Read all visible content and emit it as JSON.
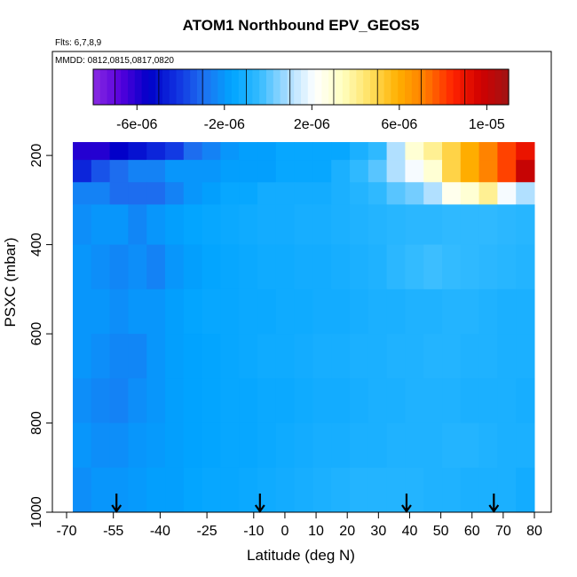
{
  "chart_data": {
    "type": "heatmap",
    "title": "ATOM1 Northbound EPV_GEOS5",
    "subtitle_flights": "Flts: 6,7,8,9",
    "subtitle_dates": "MMDD: 0812,0815,0817,0820",
    "xlabel": "Latitude (deg N)",
    "ylabel": "PSXC (mbar)",
    "xlim": [
      -70,
      80
    ],
    "ylim": [
      1000,
      150
    ],
    "y_reversed": true,
    "x_ticks": [
      "-70",
      "-55",
      "-40",
      "-25",
      "-10",
      "0",
      "10",
      "20",
      "30",
      "40",
      "50",
      "60",
      "70",
      "80"
    ],
    "x_tick_values": [
      -70,
      -55,
      -40,
      -25,
      -10,
      0,
      10,
      20,
      30,
      40,
      50,
      60,
      70,
      80
    ],
    "y_ticks": [
      "200",
      "400",
      "600",
      "800",
      "1000"
    ],
    "y_tick_values": [
      200,
      400,
      600,
      800,
      1000
    ],
    "colorbar": {
      "range": [
        -8e-06,
        1.1e-05
      ],
      "tick_labels": [
        "-6e-06",
        "-2e-06",
        "2e-06",
        "6e-06",
        "1e-05"
      ],
      "tick_values": [
        -6e-06,
        -2e-06,
        2e-06,
        6e-06,
        1e-05
      ],
      "colors": [
        "#8a2be2",
        "#5500dd",
        "#0000c8",
        "#1030e0",
        "#1e70f0",
        "#00a4ff",
        "#33bbff",
        "#a8dcff",
        "#ffffff",
        "#ffffc0",
        "#ffe060",
        "#ffb000",
        "#ff7a00",
        "#ff2200",
        "#d00000",
        "#a01414"
      ]
    },
    "profile_arrows_lat": [
      -54,
      -8,
      39,
      67
    ],
    "lat_range": [
      -68,
      80
    ],
    "rows": [
      {
        "p": [
          170,
          210
        ],
        "values": [
          -6e-06,
          -6e-06,
          -5.5e-06,
          -5e-06,
          -4.5e-06,
          -4e-06,
          -3e-06,
          -2.5e-06,
          -2e-06,
          -1.8e-06,
          -1.8e-06,
          -1.5e-06,
          -1.5e-06,
          -1.5e-06,
          -1.5e-06,
          -1e-06,
          -5e-07,
          1e-06,
          3e-06,
          4e-06,
          5e-06,
          6e-06,
          7e-06,
          8e-06,
          9e-06
        ]
      },
      {
        "p": [
          210,
          260
        ],
        "values": [
          -4.5e-06,
          -3.5e-06,
          -3e-06,
          -2.5e-06,
          -2.5e-06,
          -2e-06,
          -2e-06,
          -2e-06,
          -1.8e-06,
          -1.8e-06,
          -1.8e-06,
          -1.5e-06,
          -1.5e-06,
          -1.5e-06,
          -1e-06,
          -5e-07,
          0,
          1e-06,
          2e-06,
          3e-06,
          5e-06,
          6e-06,
          7e-06,
          8e-06,
          1e-05
        ]
      },
      {
        "p": [
          260,
          310
        ],
        "values": [
          -2.5e-06,
          -2.5e-06,
          -3e-06,
          -3e-06,
          -3e-06,
          -2.5e-06,
          -2e-06,
          -1.8e-06,
          -1.5e-06,
          -1.5e-06,
          -1.2e-06,
          -1.2e-06,
          -1.2e-06,
          -1.2e-06,
          -1e-06,
          -8e-07,
          -5e-07,
          0,
          3e-07,
          1e-06,
          2.5e-06,
          3e-06,
          4e-06,
          2e-06,
          1e-06
        ]
      },
      {
        "p": [
          310,
          400
        ],
        "values": [
          -2.2e-06,
          -2e-06,
          -2e-06,
          -2.4e-06,
          -2e-06,
          -1.8e-06,
          -1.6e-06,
          -1.5e-06,
          -1.4e-06,
          -1.3e-06,
          -1.2e-06,
          -1.2e-06,
          -1.1e-06,
          -1.1e-06,
          -1e-06,
          -9e-07,
          -8e-07,
          -7e-07,
          -6e-07,
          -6e-07,
          -5e-07,
          -5e-07,
          -5e-07,
          -6e-07,
          -7e-07
        ]
      },
      {
        "p": [
          400,
          500
        ],
        "values": [
          -2e-06,
          -2.2e-06,
          -2.4e-06,
          -2.2e-06,
          -2.5e-06,
          -2e-06,
          -1.8e-06,
          -1.6e-06,
          -1.5e-06,
          -1.4e-06,
          -1.3e-06,
          -1.3e-06,
          -1.2e-06,
          -1.2e-06,
          -1.1e-06,
          -1e-06,
          -9e-07,
          -6e-07,
          -4e-07,
          -3e-07,
          -4e-07,
          -5e-07,
          -6e-07,
          -7e-07,
          -8e-07
        ]
      },
      {
        "p": [
          500,
          600
        ],
        "values": [
          -2e-06,
          -2e-06,
          -2.2e-06,
          -2e-06,
          -2e-06,
          -1.8e-06,
          -1.6e-06,
          -1.5e-06,
          -1.5e-06,
          -1.4e-06,
          -1.4e-06,
          -1.3e-06,
          -1.3e-06,
          -1.2e-06,
          -1.2e-06,
          -1.1e-06,
          -1e-06,
          -1e-06,
          -9e-07,
          -9e-07,
          -8e-07,
          -8e-07,
          -9e-07,
          -1e-06,
          -1e-06
        ]
      },
      {
        "p": [
          600,
          700
        ],
        "values": [
          -2e-06,
          -2.2e-06,
          -2.4e-06,
          -2.4e-06,
          -2e-06,
          -1.8e-06,
          -1.7e-06,
          -1.6e-06,
          -1.5e-06,
          -1.4e-06,
          -1.3e-06,
          -1.3e-06,
          -1.2e-06,
          -1.1e-06,
          -1.1e-06,
          -1e-06,
          -1e-06,
          -9e-07,
          -9e-07,
          -8e-07,
          -8e-07,
          -9e-07,
          -9e-07,
          -1e-06,
          -1e-06
        ]
      },
      {
        "p": [
          700,
          800
        ],
        "values": [
          -2.2e-06,
          -2.4e-06,
          -2.5e-06,
          -2.2e-06,
          -2e-06,
          -1.8e-06,
          -1.7e-06,
          -1.6e-06,
          -1.5e-06,
          -1.5e-06,
          -1.4e-06,
          -1.4e-06,
          -1.3e-06,
          -1.2e-06,
          -1.2e-06,
          -1.1e-06,
          -1e-06,
          -1e-06,
          -9e-07,
          -9e-07,
          -9e-07,
          -1e-06,
          -1e-06,
          -1e-06,
          -1.1e-06
        ]
      },
      {
        "p": [
          800,
          900
        ],
        "values": [
          -2e-06,
          -2.2e-06,
          -2.2e-06,
          -2e-06,
          -1.9e-06,
          -1.8e-06,
          -1.7e-06,
          -1.6e-06,
          -1.5e-06,
          -1.5e-06,
          -1.4e-06,
          -1.3e-06,
          -1.2e-06,
          -1.1e-06,
          -1.1e-06,
          -1e-06,
          -1e-06,
          -9e-07,
          -9e-07,
          -9e-07,
          -8e-07,
          -8e-07,
          -9e-07,
          -1e-06,
          -1e-06
        ]
      },
      {
        "p": [
          900,
          1000
        ],
        "values": [
          -2.2e-06,
          -2e-06,
          -2e-06,
          -1.9e-06,
          -1.8e-06,
          -1.8e-06,
          -1.6e-06,
          -1.5e-06,
          -1.5e-06,
          -1.4e-06,
          -1.3e-06,
          -1.2e-06,
          -1.1e-06,
          -1e-06,
          -9e-07,
          -8e-07,
          -8e-07,
          -8e-07,
          -8e-07,
          -9e-07,
          -9e-07,
          -1e-06,
          -1e-06,
          -1e-06,
          -1.2e-06
        ]
      }
    ]
  }
}
